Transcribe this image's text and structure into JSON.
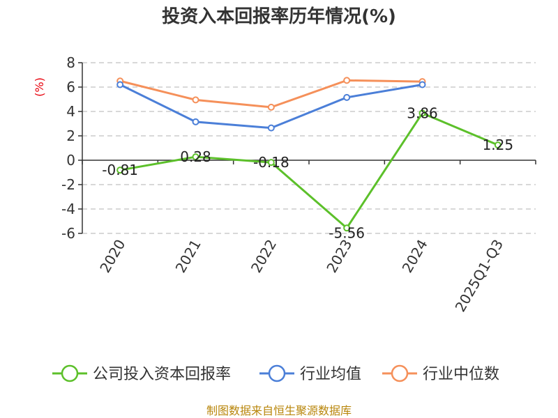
{
  "chart_data": {
    "type": "line",
    "title": "投资入本回报率历年情况(%)",
    "ylabel": "(%)",
    "categories": [
      "2020",
      "2021",
      "2022",
      "2023",
      "2024",
      "2025Q1-Q3"
    ],
    "ylim": [
      -6,
      8
    ],
    "yticks": [
      8,
      6,
      4,
      2,
      0,
      -2,
      -4,
      -6
    ],
    "grid": true,
    "legend_position": "bottom",
    "series": [
      {
        "name": "公司投入资本回报率",
        "color": "#5cc02a",
        "values": [
          -0.81,
          0.28,
          -0.18,
          -5.56,
          3.86,
          1.25
        ],
        "labels": [
          "-0.81",
          "0.28",
          "-0.18",
          "-5.56",
          "3.86",
          "1.25"
        ]
      },
      {
        "name": "行业均值",
        "color": "#4b7fd8",
        "values": [
          6.2,
          3.15,
          2.65,
          5.15,
          6.2,
          null
        ]
      },
      {
        "name": "行业中位数",
        "color": "#f5905a",
        "values": [
          6.5,
          4.95,
          4.35,
          6.55,
          6.45,
          null
        ]
      }
    ]
  },
  "source": "制图数据来自恒生聚源数据库"
}
